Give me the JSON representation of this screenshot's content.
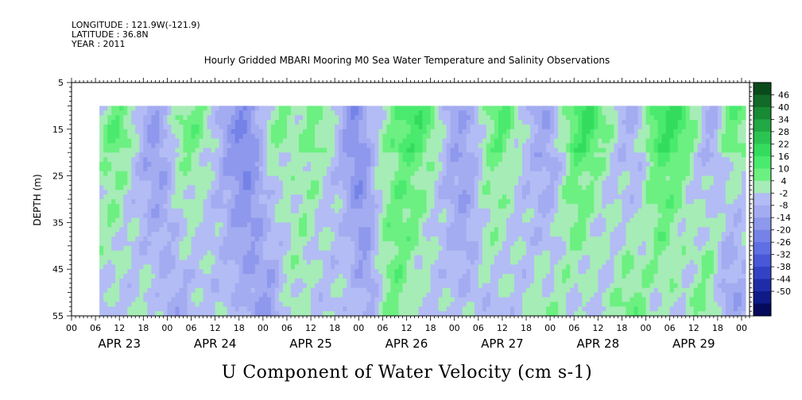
{
  "header": {
    "longitude": "LONGITUDE : 121.9W(-121.9)",
    "latitude": "LATITUDE : 36.8N",
    "year": "YEAR : 2011"
  },
  "title": "Hourly Gridded MBARI Mooring M0 Sea Water Temperature and Salinity Observations",
  "bottom_title": "U Component of Water Velocity (cm s-1)",
  "chart_data": {
    "type": "heatmap",
    "title": "Hourly Gridded MBARI Mooring M0 Sea Water Temperature and Salinity Observations",
    "variable": "U Component of Water Velocity (cm s-1)",
    "xlabel": "",
    "ylabel": "DEPTH (m)",
    "x_hour_ticks": [
      "00",
      "06",
      "12",
      "18",
      "00",
      "06",
      "12",
      "18",
      "00",
      "06",
      "12",
      "18",
      "00",
      "06",
      "12",
      "18",
      "00",
      "06",
      "12",
      "18",
      "00",
      "06",
      "12",
      "18",
      "00",
      "06",
      "12",
      "18",
      "00"
    ],
    "day_labels": [
      "APR 23",
      "APR 24",
      "APR 25",
      "APR 26",
      "APR 27",
      "APR 28",
      "APR 29"
    ],
    "xlim_hours": [
      0,
      170
    ],
    "data_x_start_hour": 7,
    "data_x_end_hour": 169,
    "y_ticks": [
      "5",
      "15",
      "25",
      "35",
      "45",
      "55"
    ],
    "ylim": [
      5,
      55
    ],
    "data_depth_range": [
      10,
      55
    ],
    "y_reversed": true,
    "colorbar_levels": [
      46,
      40,
      34,
      28,
      22,
      16,
      10,
      4,
      -2,
      -8,
      -14,
      -20,
      -26,
      -32,
      -38,
      -44,
      -50
    ],
    "colorbar_colors": [
      "#0b4a1a",
      "#116a27",
      "#188a33",
      "#22a844",
      "#2bc452",
      "#34dc5e",
      "#4aea6e",
      "#6cf081",
      "#a6ecb6",
      "#b3bcf4",
      "#a3acf0",
      "#8e98ec",
      "#7583e8",
      "#5f6fe4",
      "#4858d8",
      "#3242c4",
      "#1f2ca8",
      "#0e1a86",
      "#050a5a"
    ],
    "approx_pattern": "Alternating bands of positive (green, ~4 to 22) and negative (blue, ~-2 to -26) velocity, roughly diurnal, with the strongest green near the surface on Apr 26, Apr 28 and Apr 29"
  }
}
